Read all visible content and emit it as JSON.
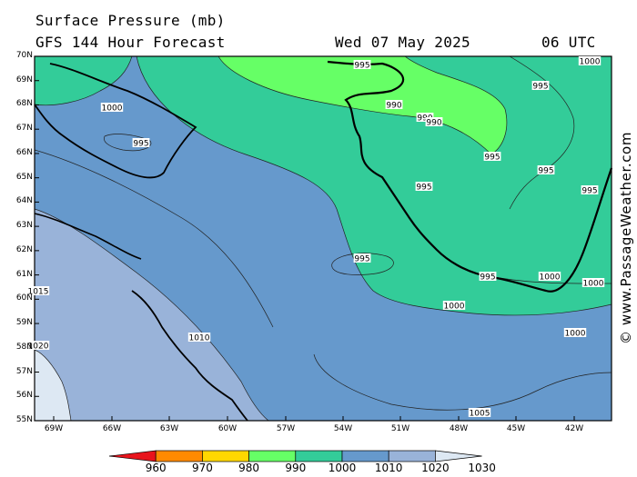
{
  "header": {
    "title": "Surface Pressure (mb)",
    "subtitle": "GFS 144 Hour Forecast",
    "date": "Wed 07 May 2025",
    "time": "06 UTC"
  },
  "map": {
    "lat_labels": [
      "70N",
      "69N",
      "68N",
      "67N",
      "66N",
      "65N",
      "64N",
      "63N",
      "62N",
      "61N",
      "60N",
      "59N",
      "58N",
      "57N",
      "56N",
      "55N"
    ],
    "lon_labels": [
      "69W",
      "66W",
      "63W",
      "60W",
      "57W",
      "54W",
      "51W",
      "48W",
      "45W",
      "42W"
    ],
    "isobar_labels": [
      "995",
      "1000",
      "990",
      "990",
      "990",
      "995",
      "995",
      "1000",
      "995",
      "995",
      "995",
      "995",
      "995",
      "995",
      "1000",
      "1000",
      "1015",
      "1010",
      "1000",
      "1000",
      "1005",
      "1020"
    ],
    "pressure_bands": [
      {
        "range": "990-1000",
        "color": "#66ff66"
      },
      {
        "range": "1000-1010",
        "color": "#33cc99"
      },
      {
        "range": "1010-1020",
        "color": "#6699cc"
      },
      {
        "range": "1020-1030",
        "color": "#99b3d9"
      },
      {
        "range": "1030+",
        "color": "#dde8f3"
      }
    ]
  },
  "colorbar": {
    "labels": [
      "960",
      "970",
      "980",
      "990",
      "1000",
      "1010",
      "1020",
      "1030"
    ],
    "colors": [
      "#e8141c",
      "#ff8a00",
      "#ffd700",
      "#66ff66",
      "#33cc99",
      "#6699cc",
      "#99b3d9",
      "#dde8f3"
    ]
  },
  "copyright": "© www.PassageWeather.com"
}
